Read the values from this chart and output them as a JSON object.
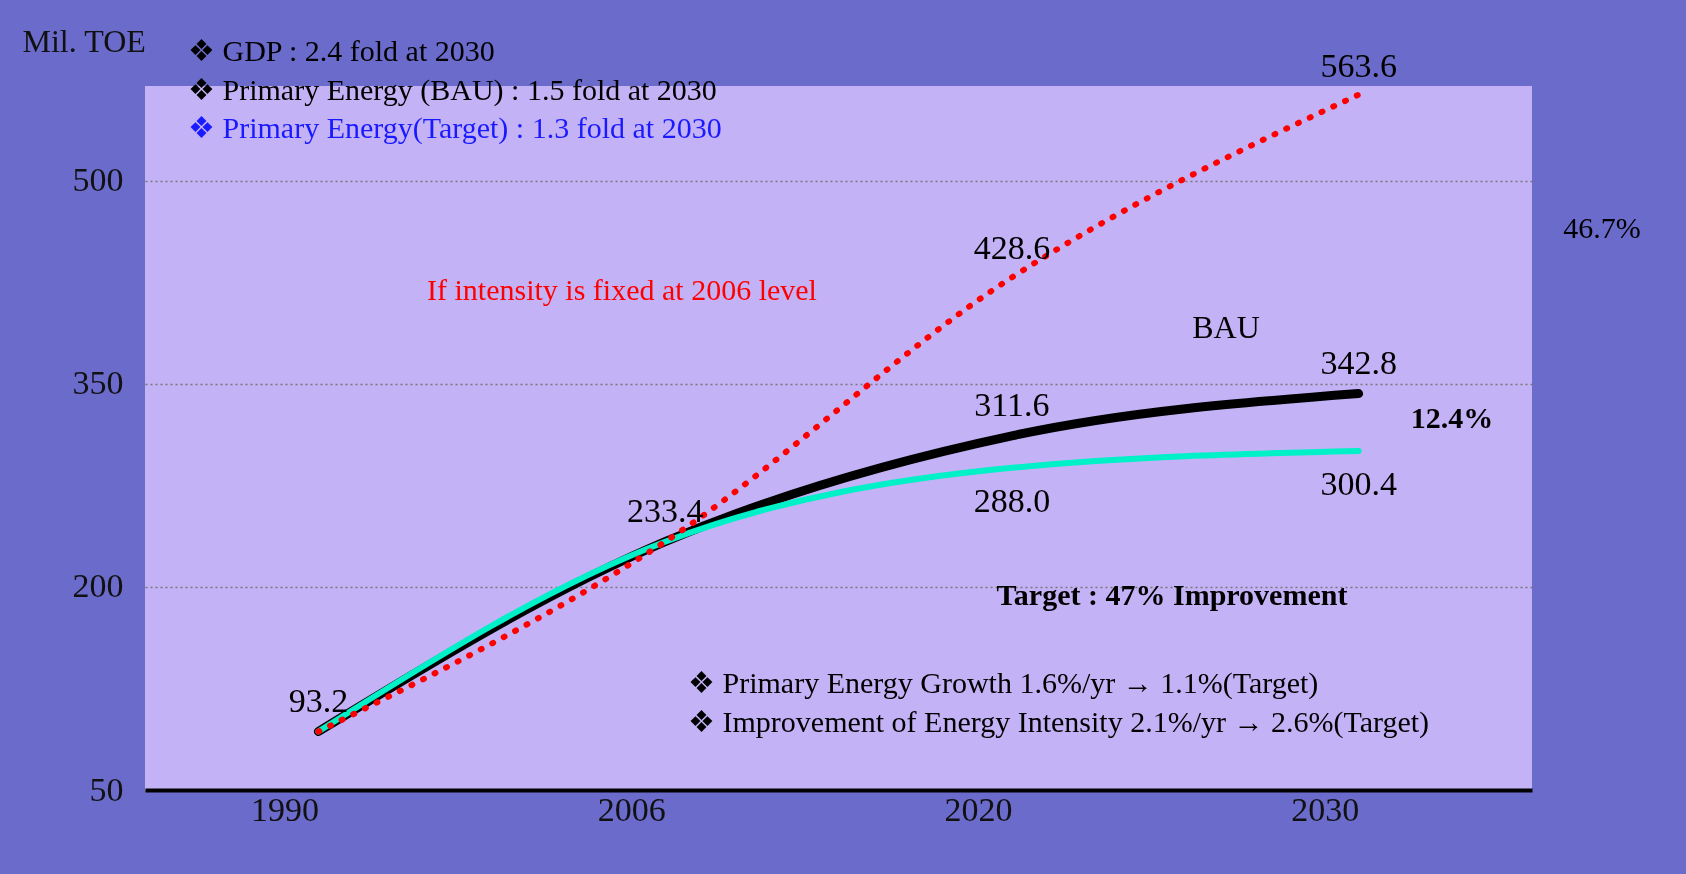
{
  "chart_data": {
    "type": "line",
    "ylabel": "Mil. TOE",
    "categories": [
      "1990",
      "2006",
      "2020",
      "2030"
    ],
    "series": [
      {
        "color": "#ff0000",
        "line_style": "dotted",
        "values": [
          93.2,
          233.4,
          428.6,
          563.6
        ],
        "value_labels": [
          null,
          null,
          "428.6",
          "563.6"
        ]
      },
      {
        "name": "BAU",
        "color": "#000000",
        "line_style": "solid",
        "values": [
          93.2,
          233.4,
          311.6,
          342.8
        ],
        "value_labels": [
          "93.2",
          "233.4",
          "311.6",
          "342.8"
        ]
      },
      {
        "color": "#00f0c8",
        "line_style": "solid",
        "values": [
          93.2,
          233.4,
          288.0,
          300.4
        ],
        "value_labels": [
          null,
          null,
          "288.0",
          "300.4"
        ]
      }
    ],
    "ylim": [
      50,
      570
    ],
    "yticks": [
      50,
      200,
      350,
      500
    ],
    "grid": "y",
    "annotations": [
      "❖  GDP : 2.4 fold at 2030",
      "❖  Primary Energy (BAU) : 1.5 fold at 2030",
      "❖  Primary Energy(Target) : 1.3 fold at 2030",
      "If intensity is fixed at 2006 level",
      "Target : 47% Improvement",
      "46.7%",
      "12.4%",
      "❖  Primary Energy Growth 1.6%/yr → 1.1%(Target)",
      "❖  Improvement of Energy Intensity 2.1%/yr → 2.6%(Target)"
    ]
  }
}
